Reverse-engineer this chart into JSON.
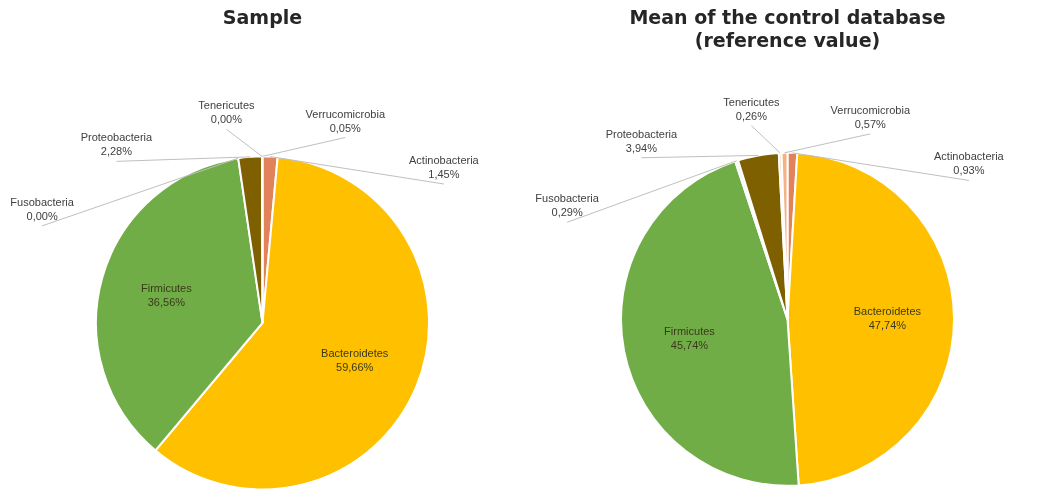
{
  "chart_data": [
    {
      "type": "pie",
      "title": "Sample",
      "categories": [
        "Actinobacteria",
        "Bacteroidetes",
        "Firmicutes",
        "Fusobacteria",
        "Proteobacteria",
        "Tenericutes",
        "Verrucomicrobia"
      ],
      "values": [
        1.45,
        59.66,
        36.56,
        0.0,
        2.28,
        0.0,
        0.05
      ],
      "value_labels": [
        "1,45%",
        "59,66%",
        "36,56%",
        "0,00%",
        "2,28%",
        "0,00%",
        "0,05%"
      ],
      "colors": [
        "#e2825a",
        "#ffc000",
        "#70ad47",
        "#f2f2f2",
        "#7f6000",
        "#f8cbad",
        "#f4b183"
      ],
      "legend": false
    },
    {
      "type": "pie",
      "title": "Mean of the control database\n(reference value)",
      "categories": [
        "Actinobacteria",
        "Bacteroidetes",
        "Firmicutes",
        "Fusobacteria",
        "Proteobacteria",
        "Tenericutes",
        "Verrucomicrobia"
      ],
      "values": [
        0.93,
        47.74,
        45.74,
        0.29,
        3.94,
        0.26,
        0.57
      ],
      "value_labels": [
        "0,93%",
        "47,74%",
        "45,74%",
        "0,29%",
        "3,94%",
        "0,26%",
        "0,57%"
      ],
      "colors": [
        "#e2825a",
        "#ffc000",
        "#70ad47",
        "#f2f2f2",
        "#7f6000",
        "#f8cbad",
        "#f4b183"
      ],
      "legend": false
    }
  ]
}
